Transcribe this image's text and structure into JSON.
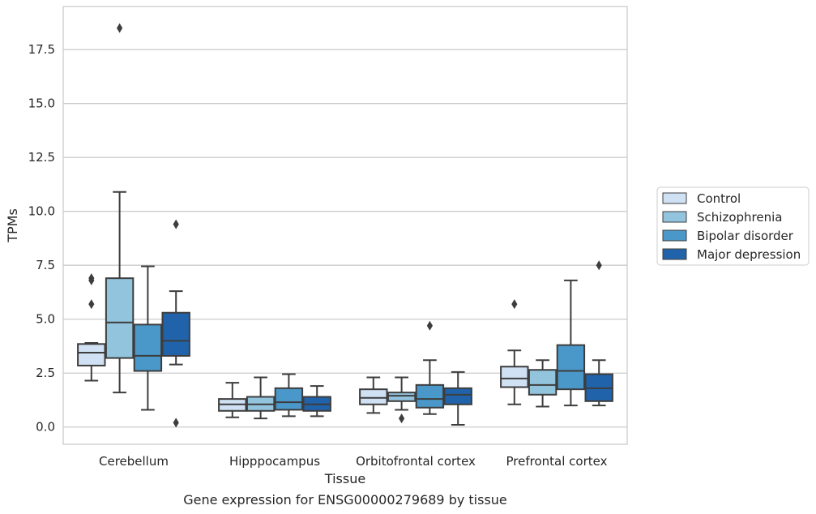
{
  "chart_data": {
    "type": "box",
    "caption": "Gene expression for ENSG00000279689 by tissue",
    "xlabel": "Tissue",
    "ylabel": "TPMs",
    "ylim": [
      -0.8,
      19.5
    ],
    "yticks": [
      "0.0",
      "2.5",
      "5.0",
      "7.5",
      "10.0",
      "12.5",
      "15.0",
      "17.5"
    ],
    "grid": true,
    "legend_position": "right",
    "categories": [
      "Cerebellum",
      "Hipppocampus",
      "Orbitofrontal cortex",
      "Prefrontal cortex"
    ],
    "series": [
      {
        "name": "Control",
        "color": "#cfe1f2",
        "boxes": [
          {
            "whislo": 2.15,
            "q1": 2.85,
            "med": 3.45,
            "q3": 3.85,
            "whishi": 3.9,
            "fliers": [
              5.7,
              6.8,
              6.9
            ]
          },
          {
            "whislo": 0.45,
            "q1": 0.75,
            "med": 1.05,
            "q3": 1.3,
            "whishi": 2.05,
            "fliers": []
          },
          {
            "whislo": 0.65,
            "q1": 1.05,
            "med": 1.35,
            "q3": 1.75,
            "whishi": 2.3,
            "fliers": []
          },
          {
            "whislo": 1.05,
            "q1": 1.85,
            "med": 2.25,
            "q3": 2.8,
            "whishi": 3.55,
            "fliers": [
              5.7
            ]
          }
        ]
      },
      {
        "name": "Schizophrenia",
        "color": "#93c4de",
        "boxes": [
          {
            "whislo": 1.6,
            "q1": 3.2,
            "med": 4.85,
            "q3": 6.9,
            "whishi": 10.9,
            "fliers": [
              18.5
            ]
          },
          {
            "whislo": 0.4,
            "q1": 0.75,
            "med": 1.05,
            "q3": 1.4,
            "whishi": 2.3,
            "fliers": []
          },
          {
            "whislo": 0.8,
            "q1": 1.2,
            "med": 1.45,
            "q3": 1.6,
            "whishi": 2.3,
            "fliers": [
              0.4
            ]
          },
          {
            "whislo": 0.95,
            "q1": 1.5,
            "med": 1.95,
            "q3": 2.65,
            "whishi": 3.1,
            "fliers": []
          }
        ]
      },
      {
        "name": "Bipolar disorder",
        "color": "#4a98c9",
        "boxes": [
          {
            "whislo": 0.8,
            "q1": 2.6,
            "med": 3.3,
            "q3": 4.75,
            "whishi": 7.45,
            "fliers": []
          },
          {
            "whislo": 0.5,
            "q1": 0.8,
            "med": 1.15,
            "q3": 1.8,
            "whishi": 2.45,
            "fliers": []
          },
          {
            "whislo": 0.6,
            "q1": 0.9,
            "med": 1.3,
            "q3": 1.95,
            "whishi": 3.1,
            "fliers": [
              4.7
            ]
          },
          {
            "whislo": 1.0,
            "q1": 1.75,
            "med": 2.6,
            "q3": 3.8,
            "whishi": 6.8,
            "fliers": []
          }
        ]
      },
      {
        "name": "Major depression",
        "color": "#2163aa",
        "boxes": [
          {
            "whislo": 2.9,
            "q1": 3.3,
            "med": 4.0,
            "q3": 5.3,
            "whishi": 6.3,
            "fliers": [
              0.2,
              9.4
            ]
          },
          {
            "whislo": 0.5,
            "q1": 0.75,
            "med": 1.05,
            "q3": 1.4,
            "whishi": 1.9,
            "fliers": []
          },
          {
            "whislo": 0.1,
            "q1": 1.05,
            "med": 1.5,
            "q3": 1.8,
            "whishi": 2.55,
            "fliers": []
          },
          {
            "whislo": 1.0,
            "q1": 1.2,
            "med": 1.8,
            "q3": 2.45,
            "whishi": 3.1,
            "fliers": [
              7.5
            ]
          }
        ]
      }
    ]
  }
}
